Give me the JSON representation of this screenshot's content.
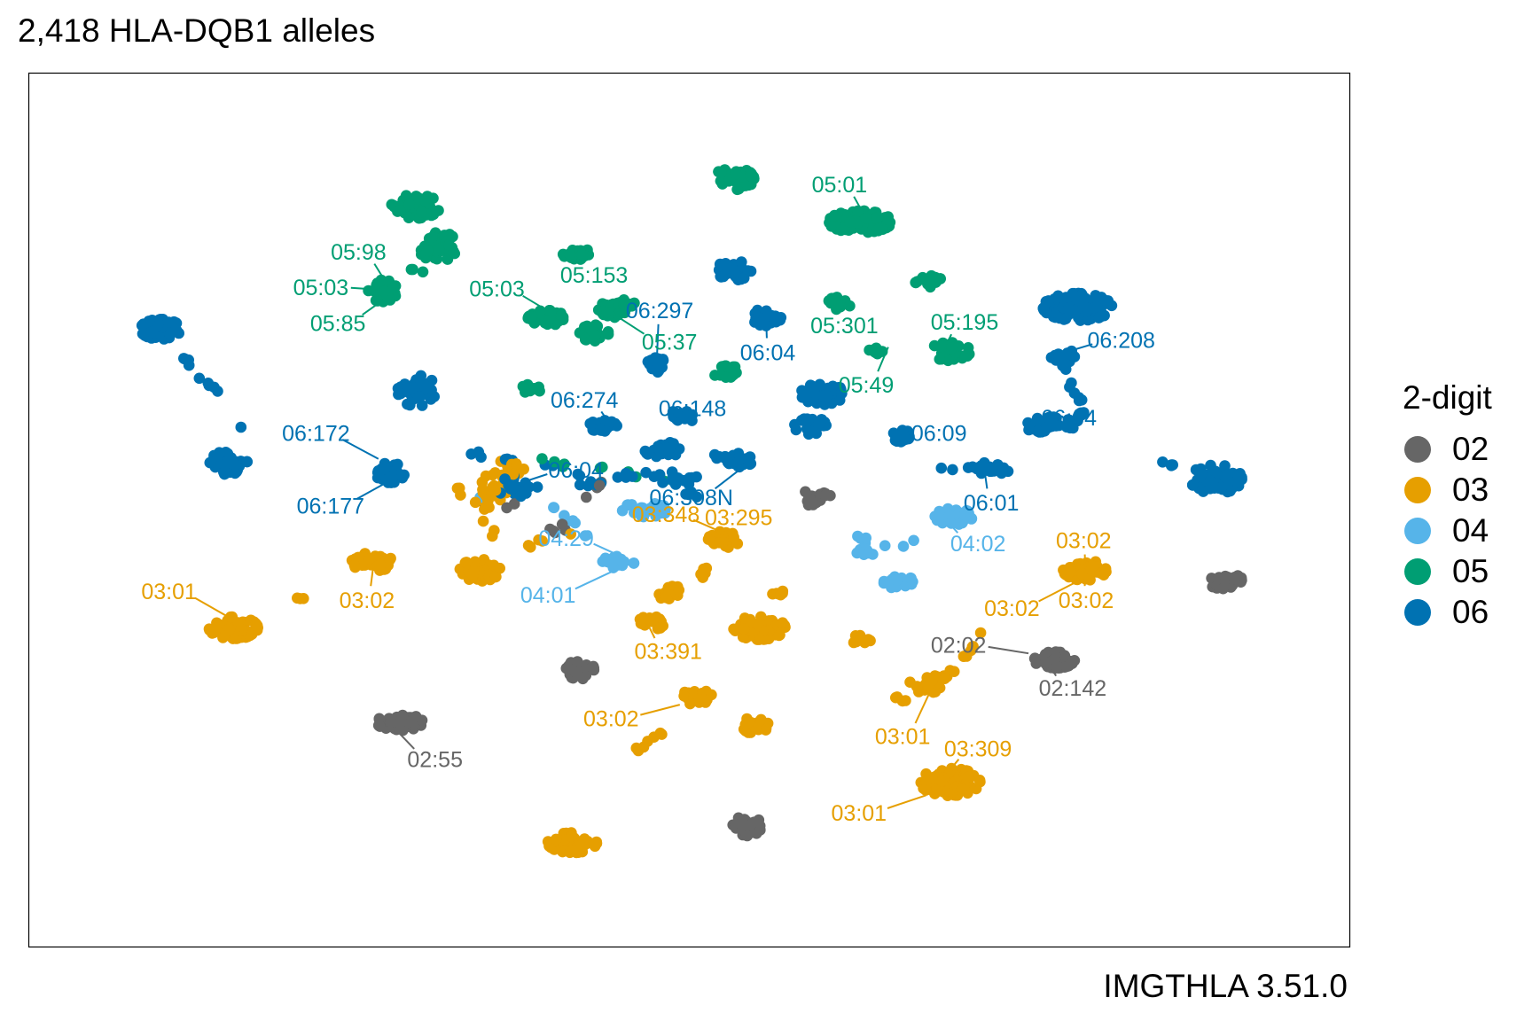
{
  "chart_data": {
    "type": "scatter",
    "title": "2,418 HLA-DQB1 alleles",
    "caption": "IMGTHLA 3.51.0",
    "xlabel": "",
    "ylabel": "",
    "grid": false,
    "legend": {
      "title": "2-digit",
      "position": "right",
      "entries": [
        {
          "label": "02",
          "color": "#666666"
        },
        {
          "label": "03",
          "color": "#E69F00"
        },
        {
          "label": "04",
          "color": "#56B4E9"
        },
        {
          "label": "05",
          "color": "#009E73"
        },
        {
          "label": "06",
          "color": "#0072B2"
        }
      ]
    },
    "xlim": [
      0,
      1000
    ],
    "ylim": [
      0,
      1000
    ],
    "clusters": [
      {
        "group": "05",
        "x": 537,
        "y": 931,
        "sx": 14,
        "sy": 12,
        "n": 50
      },
      {
        "group": "05",
        "x": 641,
        "y": 875,
        "sx": 22,
        "sy": 12,
        "n": 85
      },
      {
        "group": "05",
        "x": 275,
        "y": 895,
        "sx": 17,
        "sy": 13,
        "n": 65
      },
      {
        "group": "05",
        "x": 298,
        "y": 844,
        "sx": 12,
        "sy": 16,
        "n": 42
      },
      {
        "group": "05",
        "x": 407,
        "y": 834,
        "sx": 9,
        "sy": 8,
        "n": 24
      },
      {
        "group": "05",
        "x": 248,
        "y": 785,
        "sx": 10,
        "sy": 12,
        "n": 38
      },
      {
        "group": "05",
        "x": 383,
        "y": 749,
        "sx": 13,
        "sy": 9,
        "n": 34
      },
      {
        "group": "05",
        "x": 422,
        "y": 730,
        "sx": 10,
        "sy": 9,
        "n": 26
      },
      {
        "group": "05",
        "x": 442,
        "y": 762,
        "sx": 14,
        "sy": 10,
        "n": 34
      },
      {
        "group": "05",
        "x": 369,
        "y": 656,
        "sx": 7,
        "sy": 7,
        "n": 12
      },
      {
        "group": "05",
        "x": 533,
        "y": 677,
        "sx": 10,
        "sy": 9,
        "n": 18
      },
      {
        "group": "05",
        "x": 624,
        "y": 769,
        "sx": 8,
        "sy": 7,
        "n": 10
      },
      {
        "group": "05",
        "x": 658,
        "y": 708,
        "sx": 8,
        "sy": 6,
        "n": 8
      },
      {
        "group": "05",
        "x": 697,
        "y": 798,
        "sx": 9,
        "sy": 8,
        "n": 20
      },
      {
        "group": "05",
        "x": 715,
        "y": 706,
        "sx": 14,
        "sy": 10,
        "n": 36
      },
      {
        "group": "06",
        "x": 65,
        "y": 735,
        "sx": 14,
        "sy": 11,
        "n": 60
      },
      {
        "group": "06",
        "x": 121,
        "y": 561,
        "sx": 13,
        "sy": 13,
        "n": 65
      },
      {
        "group": "06",
        "x": 276,
        "y": 655,
        "sx": 14,
        "sy": 17,
        "n": 45
      },
      {
        "group": "06",
        "x": 254,
        "y": 548,
        "sx": 10,
        "sy": 11,
        "n": 38
      },
      {
        "group": "06",
        "x": 537,
        "y": 812,
        "sx": 12,
        "sy": 11,
        "n": 40
      },
      {
        "group": "06",
        "x": 564,
        "y": 751,
        "sx": 10,
        "sy": 10,
        "n": 30
      },
      {
        "group": "06",
        "x": 474,
        "y": 689,
        "sx": 8,
        "sy": 9,
        "n": 20
      },
      {
        "group": "06",
        "x": 429,
        "y": 608,
        "sx": 10,
        "sy": 7,
        "n": 28
      },
      {
        "group": "06",
        "x": 493,
        "y": 620,
        "sx": 9,
        "sy": 8,
        "n": 20
      },
      {
        "group": "06",
        "x": 478,
        "y": 578,
        "sx": 12,
        "sy": 9,
        "n": 30
      },
      {
        "group": "06",
        "x": 542,
        "y": 565,
        "sx": 9,
        "sy": 8,
        "n": 24
      },
      {
        "group": "06",
        "x": 610,
        "y": 651,
        "sx": 15,
        "sy": 12,
        "n": 40
      },
      {
        "group": "06",
        "x": 600,
        "y": 609,
        "sx": 11,
        "sy": 10,
        "n": 25
      },
      {
        "group": "06",
        "x": 676,
        "y": 596,
        "sx": 7,
        "sy": 7,
        "n": 18
      },
      {
        "group": "06",
        "x": 745,
        "y": 554,
        "sx": 10,
        "sy": 6,
        "n": 15
      },
      {
        "group": "06",
        "x": 798,
        "y": 609,
        "sx": 17,
        "sy": 10,
        "n": 34
      },
      {
        "group": "06",
        "x": 820,
        "y": 764,
        "sx": 24,
        "sy": 15,
        "n": 115
      },
      {
        "group": "06",
        "x": 808,
        "y": 698,
        "sx": 10,
        "sy": 9,
        "n": 18
      },
      {
        "group": "06",
        "x": 934,
        "y": 540,
        "sx": 18,
        "sy": 16,
        "n": 65
      },
      {
        "group": "06",
        "x": 361,
        "y": 528,
        "sx": 15,
        "sy": 14,
        "n": 25
      },
      {
        "group": "03",
        "x": 125,
        "y": 346,
        "sx": 17,
        "sy": 12,
        "n": 75
      },
      {
        "group": "03",
        "x": 239,
        "y": 432,
        "sx": 14,
        "sy": 11,
        "n": 50
      },
      {
        "group": "03",
        "x": 328,
        "y": 421,
        "sx": 14,
        "sy": 12,
        "n": 50
      },
      {
        "group": "03",
        "x": 338,
        "y": 524,
        "sx": 14,
        "sy": 18,
        "n": 20
      },
      {
        "group": "03",
        "x": 471,
        "y": 354,
        "sx": 10,
        "sy": 8,
        "n": 22
      },
      {
        "group": "03",
        "x": 484,
        "y": 392,
        "sx": 8,
        "sy": 9,
        "n": 20
      },
      {
        "group": "03",
        "x": 529,
        "y": 461,
        "sx": 11,
        "sy": 9,
        "n": 30
      },
      {
        "group": "03",
        "x": 514,
        "y": 420,
        "sx": 5,
        "sy": 8,
        "n": 6
      },
      {
        "group": "03",
        "x": 558,
        "y": 346,
        "sx": 18,
        "sy": 13,
        "n": 60
      },
      {
        "group": "03",
        "x": 573,
        "y": 390,
        "sx": 6,
        "sy": 4,
        "n": 6
      },
      {
        "group": "03",
        "x": 505,
        "y": 256,
        "sx": 12,
        "sy": 8,
        "n": 30
      },
      {
        "group": "03",
        "x": 556,
        "y": 219,
        "sx": 10,
        "sy": 10,
        "n": 30
      },
      {
        "group": "03",
        "x": 640,
        "y": 330,
        "sx": 8,
        "sy": 5,
        "n": 9
      },
      {
        "group": "03",
        "x": 696,
        "y": 273,
        "sx": 12,
        "sy": 10,
        "n": 30
      },
      {
        "group": "03",
        "x": 826,
        "y": 421,
        "sx": 15,
        "sy": 11,
        "n": 50
      },
      {
        "group": "03",
        "x": 715,
        "y": 145,
        "sx": 21,
        "sy": 15,
        "n": 110
      },
      {
        "group": "03",
        "x": 404,
        "y": 66,
        "sx": 17,
        "sy": 11,
        "n": 55
      },
      {
        "group": "03",
        "x": 350,
        "y": 554,
        "sx": 12,
        "sy": 8,
        "n": 12
      },
      {
        "group": "04",
        "x": 464,
        "y": 500,
        "sx": 16,
        "sy": 8,
        "n": 40
      },
      {
        "group": "04",
        "x": 442,
        "y": 432,
        "sx": 11,
        "sy": 7,
        "n": 25
      },
      {
        "group": "04",
        "x": 718,
        "y": 491,
        "sx": 13,
        "sy": 9,
        "n": 40
      },
      {
        "group": "04",
        "x": 672,
        "y": 406,
        "sx": 11,
        "sy": 7,
        "n": 30
      },
      {
        "group": "04",
        "x": 644,
        "y": 446,
        "sx": 8,
        "sy": 6,
        "n": 10
      },
      {
        "group": "02",
        "x": 410,
        "y": 292,
        "sx": 10,
        "sy": 11,
        "n": 35
      },
      {
        "group": "02",
        "x": 262,
        "y": 223,
        "sx": 16,
        "sy": 9,
        "n": 60
      },
      {
        "group": "02",
        "x": 548,
        "y": 88,
        "sx": 10,
        "sy": 11,
        "n": 50
      },
      {
        "group": "02",
        "x": 801,
        "y": 304,
        "sx": 14,
        "sy": 9,
        "n": 45
      },
      {
        "group": "02",
        "x": 943,
        "y": 406,
        "sx": 14,
        "sy": 8,
        "n": 45
      },
      {
        "group": "02",
        "x": 605,
        "y": 514,
        "sx": 11,
        "sy": 12,
        "n": 20
      }
    ],
    "paths": [
      {
        "group": "06",
        "points": [
          [
            77,
            706
          ],
          [
            88,
            692
          ],
          [
            98,
            669
          ],
          [
            115,
            654
          ],
          [
            136,
            588
          ],
          [
            178,
            586
          ]
        ],
        "jitter": 3,
        "n": 10
      },
      {
        "group": "03",
        "points": [
          [
            172,
            385
          ],
          [
            186,
            383
          ]
        ],
        "jitter": 2,
        "n": 3
      },
      {
        "group": "03",
        "points": [
          [
            442,
            125
          ],
          [
            451,
            175
          ],
          [
            473,
            208
          ],
          [
            484,
            222
          ]
        ],
        "jitter": 3,
        "n": 7
      },
      {
        "group": "03",
        "points": [
          [
            744,
            345
          ],
          [
            729,
            311
          ],
          [
            708,
            280
          ]
        ],
        "jitter": 3,
        "n": 12
      },
      {
        "group": "03",
        "points": [
          [
            669,
            258
          ],
          [
            681,
            248
          ]
        ],
        "jitter": 4,
        "n": 4
      },
      {
        "group": "05",
        "points": [
          [
            282,
            846
          ],
          [
            282,
            805
          ],
          [
            269,
            815
          ]
        ],
        "jitter": 3,
        "n": 8
      },
      {
        "group": "06",
        "points": [
          [
            808,
            698
          ],
          [
            815,
            665
          ],
          [
            824,
            630
          ],
          [
            818,
            615
          ]
        ],
        "jitter": 4,
        "n": 14
      },
      {
        "group": "06",
        "points": [
          [
            700,
            552
          ],
          [
            740,
            554
          ],
          [
            765,
            550
          ]
        ],
        "jitter": 4,
        "n": 10
      },
      {
        "group": "06",
        "points": [
          [
            888,
            562
          ],
          [
            905,
            555
          ]
        ],
        "jitter": 3,
        "n": 4
      },
      {
        "group": "06",
        "points": [
          [
            320,
            575
          ],
          [
            350,
            565
          ],
          [
            400,
            550
          ],
          [
            420,
            530
          ],
          [
            450,
            548
          ],
          [
            480,
            545
          ],
          [
            505,
            540
          ]
        ],
        "jitter": 6,
        "n": 30
      },
      {
        "group": "05",
        "points": [
          [
            345,
            575
          ],
          [
            395,
            560
          ],
          [
            440,
            552
          ],
          [
            480,
            533
          ]
        ],
        "jitter": 5,
        "n": 9
      },
      {
        "group": "03",
        "points": [
          [
            310,
            530
          ],
          [
            330,
            495
          ],
          [
            340,
            470
          ],
          [
            350,
            450
          ],
          [
            385,
            460
          ],
          [
            410,
            470
          ]
        ],
        "jitter": 5,
        "n": 14
      },
      {
        "group": "04",
        "points": [
          [
            320,
            520
          ],
          [
            380,
            510
          ],
          [
            410,
            480
          ],
          [
            420,
            460
          ]
        ],
        "jitter": 5,
        "n": 8
      },
      {
        "group": "02",
        "points": [
          [
            320,
            512
          ],
          [
            360,
            505
          ],
          [
            380,
            465
          ],
          [
            400,
            482
          ],
          [
            415,
            515
          ],
          [
            429,
            536
          ]
        ],
        "jitter": 5,
        "n": 12
      },
      {
        "group": "04",
        "points": [
          [
            630,
            470
          ],
          [
            650,
            455
          ],
          [
            680,
            450
          ],
          [
            700,
            470
          ]
        ],
        "jitter": 4,
        "n": 8
      },
      {
        "group": "06",
        "points": [
          [
            477,
            532
          ],
          [
            490,
            540
          ],
          [
            500,
            520
          ],
          [
            520,
            560
          ],
          [
            530,
            580
          ]
        ],
        "jitter": 5,
        "n": 14
      }
    ],
    "annotations": [
      {
        "text": "05:01",
        "group": "05",
        "x": 624,
        "y": 924
      },
      {
        "text": "05:98",
        "group": "05",
        "x": 228,
        "y": 836
      },
      {
        "text": "05:03",
        "group": "05",
        "x": 197,
        "y": 790
      },
      {
        "text": "05:85",
        "group": "05",
        "x": 211,
        "y": 743
      },
      {
        "text": "05:153",
        "group": "05",
        "x": 422,
        "y": 806
      },
      {
        "text": "05:03",
        "group": "05",
        "x": 342,
        "y": 788
      },
      {
        "text": "06:297",
        "group": "06",
        "x": 476,
        "y": 760
      },
      {
        "text": "05:37",
        "group": "05",
        "x": 484,
        "y": 719
      },
      {
        "text": "05:301",
        "group": "05",
        "x": 628,
        "y": 740
      },
      {
        "text": "05:195",
        "group": "05",
        "x": 727,
        "y": 745
      },
      {
        "text": "06:208",
        "group": "06",
        "x": 856,
        "y": 721
      },
      {
        "text": "06:04",
        "group": "06",
        "x": 565,
        "y": 705
      },
      {
        "text": "05:49",
        "group": "05",
        "x": 646,
        "y": 663
      },
      {
        "text": "06:274",
        "group": "06",
        "x": 414,
        "y": 643
      },
      {
        "text": "06:148",
        "group": "06",
        "x": 503,
        "y": 632
      },
      {
        "text": "06:172",
        "group": "06",
        "x": 193,
        "y": 600
      },
      {
        "text": "06:09",
        "group": "06",
        "x": 706,
        "y": 600
      },
      {
        "text": "06:04",
        "group": "06",
        "x": 813,
        "y": 620
      },
      {
        "text": "06:04",
        "group": "06",
        "x": 407,
        "y": 552
      },
      {
        "text": "06:308N",
        "group": "06",
        "x": 502,
        "y": 516
      },
      {
        "text": "06:177",
        "group": "06",
        "x": 205,
        "y": 505
      },
      {
        "text": "06:01",
        "group": "06",
        "x": 749,
        "y": 509
      },
      {
        "text": "03:348",
        "group": "03",
        "x": 481,
        "y": 494
      },
      {
        "text": "03:295",
        "group": "03",
        "x": 541,
        "y": 490
      },
      {
        "text": "04:29",
        "group": "04",
        "x": 399,
        "y": 463
      },
      {
        "text": "04:02",
        "group": "04",
        "x": 738,
        "y": 456
      },
      {
        "text": "03:02",
        "group": "03",
        "x": 825,
        "y": 460
      },
      {
        "text": "03:01",
        "group": "03",
        "x": 72,
        "y": 394
      },
      {
        "text": "03:02",
        "group": "03",
        "x": 235,
        "y": 382
      },
      {
        "text": "04:01",
        "group": "04",
        "x": 384,
        "y": 389
      },
      {
        "text": "03:02",
        "group": "03",
        "x": 766,
        "y": 372
      },
      {
        "text": "03:02",
        "group": "03",
        "x": 827,
        "y": 382
      },
      {
        "text": "03:391",
        "group": "03",
        "x": 483,
        "y": 316
      },
      {
        "text": "02:02",
        "group": "02",
        "x": 722,
        "y": 324
      },
      {
        "text": "02:142",
        "group": "02",
        "x": 816,
        "y": 268
      },
      {
        "text": "03:02",
        "group": "03",
        "x": 436,
        "y": 228
      },
      {
        "text": "03:01",
        "group": "03",
        "x": 676,
        "y": 205
      },
      {
        "text": "03:309",
        "group": "03",
        "x": 738,
        "y": 189
      },
      {
        "text": "02:55",
        "group": "02",
        "x": 291,
        "y": 175
      },
      {
        "text": "03:01",
        "group": "03",
        "x": 640,
        "y": 105
      }
    ]
  }
}
